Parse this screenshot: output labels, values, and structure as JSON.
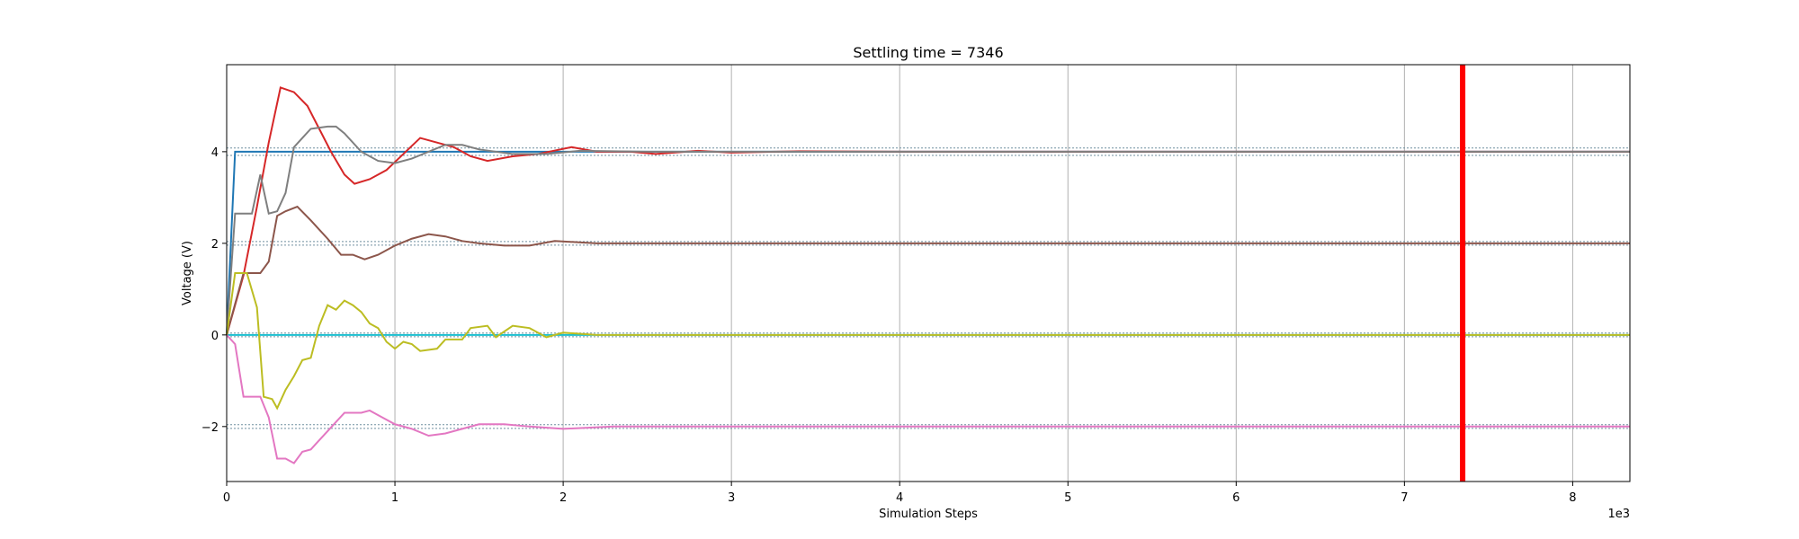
{
  "chart_data": {
    "type": "line",
    "title": "Settling time = 7346",
    "xlabel": "Simulation Steps",
    "ylabel": "Voltage (V)",
    "x_offset_label": "1e3",
    "xlim": [
      0,
      8.34
    ],
    "ylim": [
      -3.2,
      5.9
    ],
    "x_ticks": [
      0,
      1,
      2,
      3,
      4,
      5,
      6,
      7,
      8
    ],
    "y_ticks": [
      -2,
      0,
      2,
      4
    ],
    "grid": "vertical",
    "settling_marker": {
      "x": 7.346,
      "color": "#ff0000"
    },
    "reference_bands": [
      {
        "center": 4,
        "lower": 3.92,
        "upper": 4.08
      },
      {
        "center": 2,
        "lower": 1.96,
        "upper": 2.04
      },
      {
        "center": 0,
        "lower": -0.04,
        "upper": 0.04
      },
      {
        "center": -2,
        "lower": -2.04,
        "upper": -1.96
      }
    ],
    "series": [
      {
        "color": "#1f77b4",
        "points": [
          [
            0,
            0
          ],
          [
            0.05,
            4
          ],
          [
            8.34,
            4
          ]
        ]
      },
      {
        "color": "#17becf",
        "points": [
          [
            0,
            0
          ],
          [
            8.34,
            0
          ]
        ]
      },
      {
        "color": "#d62728",
        "points": [
          [
            0,
            0
          ],
          [
            0.1,
            1.3
          ],
          [
            0.18,
            2.8
          ],
          [
            0.25,
            4.2
          ],
          [
            0.32,
            5.4
          ],
          [
            0.4,
            5.3
          ],
          [
            0.48,
            5.0
          ],
          [
            0.55,
            4.5
          ],
          [
            0.62,
            4.0
          ],
          [
            0.7,
            3.5
          ],
          [
            0.76,
            3.3
          ],
          [
            0.85,
            3.4
          ],
          [
            0.95,
            3.6
          ],
          [
            1.05,
            3.95
          ],
          [
            1.15,
            4.3
          ],
          [
            1.25,
            4.2
          ],
          [
            1.35,
            4.1
          ],
          [
            1.45,
            3.9
          ],
          [
            1.55,
            3.8
          ],
          [
            1.7,
            3.9
          ],
          [
            1.85,
            3.95
          ],
          [
            2.05,
            4.1
          ],
          [
            2.2,
            4.0
          ],
          [
            2.4,
            4.0
          ],
          [
            2.55,
            3.95
          ],
          [
            2.8,
            4.02
          ],
          [
            3.0,
            3.98
          ],
          [
            3.4,
            4.01
          ],
          [
            4.0,
            4.0
          ],
          [
            5.0,
            4.0
          ],
          [
            6.0,
            4.0
          ],
          [
            7.0,
            4.0
          ],
          [
            8.34,
            4.0
          ]
        ]
      },
      {
        "color": "#7f7f7f",
        "points": [
          [
            0,
            0
          ],
          [
            0.05,
            2.65
          ],
          [
            0.15,
            2.65
          ],
          [
            0.2,
            3.5
          ],
          [
            0.25,
            2.65
          ],
          [
            0.3,
            2.7
          ],
          [
            0.35,
            3.1
          ],
          [
            0.4,
            4.1
          ],
          [
            0.45,
            4.3
          ],
          [
            0.5,
            4.5
          ],
          [
            0.6,
            4.55
          ],
          [
            0.65,
            4.55
          ],
          [
            0.7,
            4.4
          ],
          [
            0.8,
            4.0
          ],
          [
            0.9,
            3.8
          ],
          [
            1.0,
            3.75
          ],
          [
            1.1,
            3.85
          ],
          [
            1.2,
            4.0
          ],
          [
            1.3,
            4.15
          ],
          [
            1.4,
            4.15
          ],
          [
            1.5,
            4.05
          ],
          [
            1.7,
            3.95
          ],
          [
            1.9,
            3.95
          ],
          [
            2.1,
            4.02
          ],
          [
            2.5,
            4.0
          ],
          [
            3.0,
            4.0
          ],
          [
            4.0,
            4.0
          ],
          [
            5.0,
            4.0
          ],
          [
            6.0,
            4.0
          ],
          [
            7.0,
            4.0
          ],
          [
            8.34,
            4.0
          ]
        ]
      },
      {
        "color": "#8c564b",
        "points": [
          [
            0,
            0
          ],
          [
            0.1,
            1.35
          ],
          [
            0.2,
            1.35
          ],
          [
            0.25,
            1.6
          ],
          [
            0.3,
            2.6
          ],
          [
            0.35,
            2.7
          ],
          [
            0.42,
            2.8
          ],
          [
            0.5,
            2.5
          ],
          [
            0.6,
            2.1
          ],
          [
            0.68,
            1.75
          ],
          [
            0.75,
            1.75
          ],
          [
            0.82,
            1.65
          ],
          [
            0.9,
            1.75
          ],
          [
            1.0,
            1.95
          ],
          [
            1.1,
            2.1
          ],
          [
            1.2,
            2.2
          ],
          [
            1.3,
            2.15
          ],
          [
            1.4,
            2.05
          ],
          [
            1.5,
            2.0
          ],
          [
            1.65,
            1.95
          ],
          [
            1.8,
            1.95
          ],
          [
            1.95,
            2.05
          ],
          [
            2.2,
            2.0
          ],
          [
            2.5,
            2.0
          ],
          [
            3.0,
            2.0
          ],
          [
            4.0,
            2.0
          ],
          [
            5.0,
            2.0
          ],
          [
            6.0,
            2.0
          ],
          [
            7.0,
            2.0
          ],
          [
            8.34,
            2.0
          ]
        ]
      },
      {
        "color": "#bcbd22",
        "points": [
          [
            0,
            0
          ],
          [
            0.05,
            1.35
          ],
          [
            0.12,
            1.35
          ],
          [
            0.18,
            0.6
          ],
          [
            0.22,
            -1.35
          ],
          [
            0.27,
            -1.4
          ],
          [
            0.3,
            -1.6
          ],
          [
            0.35,
            -1.2
          ],
          [
            0.4,
            -0.9
          ],
          [
            0.45,
            -0.55
          ],
          [
            0.5,
            -0.5
          ],
          [
            0.55,
            0.2
          ],
          [
            0.6,
            0.65
          ],
          [
            0.65,
            0.55
          ],
          [
            0.7,
            0.75
          ],
          [
            0.75,
            0.65
          ],
          [
            0.8,
            0.5
          ],
          [
            0.85,
            0.25
          ],
          [
            0.9,
            0.15
          ],
          [
            0.95,
            -0.15
          ],
          [
            1.0,
            -0.3
          ],
          [
            1.05,
            -0.15
          ],
          [
            1.1,
            -0.2
          ],
          [
            1.15,
            -0.35
          ],
          [
            1.25,
            -0.3
          ],
          [
            1.3,
            -0.1
          ],
          [
            1.4,
            -0.1
          ],
          [
            1.45,
            0.15
          ],
          [
            1.55,
            0.2
          ],
          [
            1.6,
            -0.05
          ],
          [
            1.7,
            0.2
          ],
          [
            1.8,
            0.15
          ],
          [
            1.9,
            -0.05
          ],
          [
            2.0,
            0.05
          ],
          [
            2.2,
            0.0
          ],
          [
            2.5,
            0.0
          ],
          [
            3.0,
            0.0
          ],
          [
            4.0,
            0.0
          ],
          [
            5.0,
            0.0
          ],
          [
            6.0,
            0.0
          ],
          [
            7.0,
            0.0
          ],
          [
            8.34,
            0.0
          ]
        ]
      },
      {
        "color": "#e377c2",
        "points": [
          [
            0,
            0
          ],
          [
            0.05,
            -0.2
          ],
          [
            0.1,
            -1.35
          ],
          [
            0.2,
            -1.35
          ],
          [
            0.25,
            -1.8
          ],
          [
            0.3,
            -2.7
          ],
          [
            0.35,
            -2.7
          ],
          [
            0.4,
            -2.8
          ],
          [
            0.45,
            -2.55
          ],
          [
            0.5,
            -2.5
          ],
          [
            0.55,
            -2.3
          ],
          [
            0.6,
            -2.1
          ],
          [
            0.65,
            -1.9
          ],
          [
            0.7,
            -1.7
          ],
          [
            0.8,
            -1.7
          ],
          [
            0.85,
            -1.65
          ],
          [
            0.9,
            -1.75
          ],
          [
            1.0,
            -1.95
          ],
          [
            1.1,
            -2.05
          ],
          [
            1.2,
            -2.2
          ],
          [
            1.3,
            -2.15
          ],
          [
            1.4,
            -2.05
          ],
          [
            1.5,
            -1.95
          ],
          [
            1.65,
            -1.95
          ],
          [
            1.8,
            -2.0
          ],
          [
            2.0,
            -2.05
          ],
          [
            2.3,
            -2.0
          ],
          [
            2.6,
            -2.0
          ],
          [
            3.0,
            -2.0
          ],
          [
            4.0,
            -2.0
          ],
          [
            5.0,
            -2.0
          ],
          [
            6.0,
            -2.0
          ],
          [
            7.0,
            -2.0
          ],
          [
            8.34,
            -2.0
          ]
        ]
      }
    ]
  }
}
